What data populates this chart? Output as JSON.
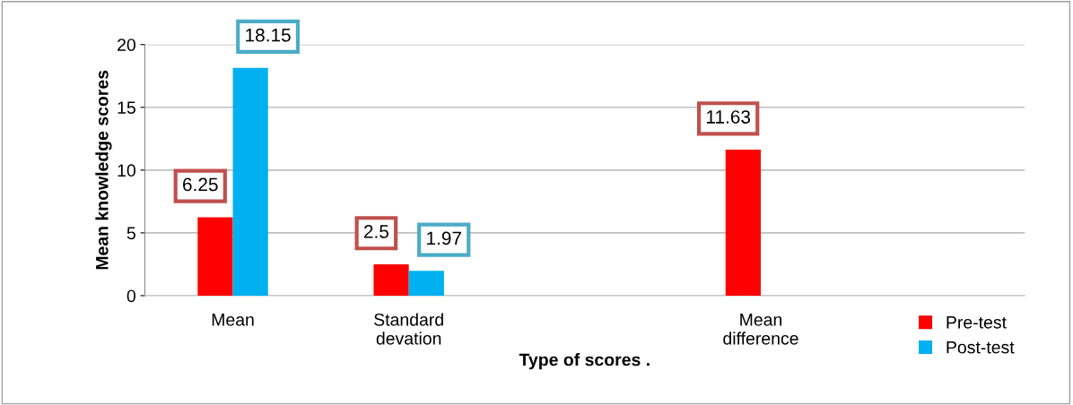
{
  "chart_data": {
    "type": "bar",
    "xlabel": "Type of scores .",
    "ylabel": "Mean knowledge scores",
    "categories": [
      "Mean",
      "Standard\ndevation",
      null,
      "Mean\ndifference",
      null
    ],
    "series": [
      {
        "name": "Pre-test",
        "color": "#ff0000",
        "values": [
          6.25,
          2.5,
          null,
          11.63,
          null
        ]
      },
      {
        "name": "Post-test",
        "color": "#00b0f0",
        "values": [
          18.15,
          1.97,
          null,
          null,
          null
        ]
      }
    ],
    "ylim": [
      0,
      20
    ],
    "yticks": [
      0,
      5,
      10,
      15,
      20
    ],
    "grid": "y",
    "data_labels": true,
    "legend": "bottom right"
  }
}
